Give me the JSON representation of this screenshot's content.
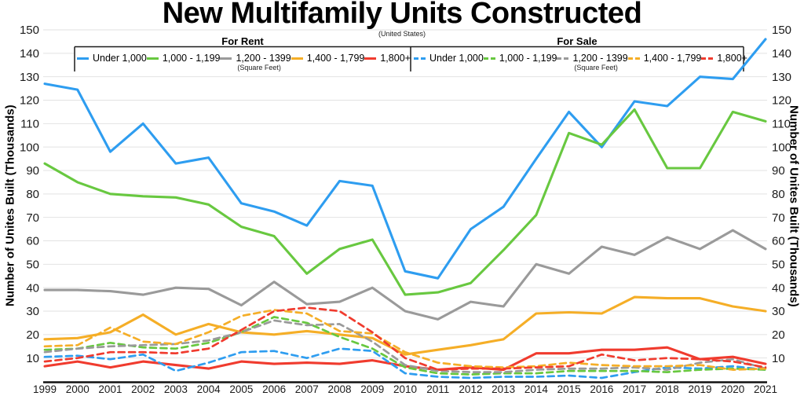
{
  "title": "New Multifamily Units Constructed",
  "subtitle": "(United States)",
  "y_axis_title_left": "Number of Unites Built (Thousands)",
  "y_axis_title_right": "Number of Unites Built (Thousands)",
  "legend": {
    "groups": [
      {
        "title": "For Rent",
        "note": "(Square Feet)",
        "series_indexes": [
          0,
          1,
          2,
          3,
          4
        ]
      },
      {
        "title": "For Sale",
        "note": "(Square Feet)",
        "series_indexes": [
          5,
          6,
          7,
          8,
          9
        ]
      }
    ]
  },
  "chart_data": {
    "type": "line",
    "title": "New Multifamily Units Constructed",
    "subtitle": "(United States)",
    "ylabel": "Number of Unites Built (Thousands)",
    "ylim": [
      0,
      150
    ],
    "y_ticks": [
      10,
      20,
      30,
      40,
      50,
      60,
      70,
      80,
      90,
      100,
      110,
      120,
      130,
      140,
      150
    ],
    "grid": true,
    "legend_position": "top",
    "x": [
      1999,
      2000,
      2001,
      2002,
      2003,
      2004,
      2005,
      2006,
      2007,
      2008,
      2009,
      2010,
      2011,
      2012,
      2013,
      2014,
      2015,
      2016,
      2017,
      2018,
      2019,
      2020,
      2021
    ],
    "series": [
      {
        "name": "For Rent Under 1,000",
        "label": "Under 1,000",
        "color": "#2E9DF0",
        "dash": "solid",
        "values": [
          127,
          124.5,
          98,
          110,
          93,
          95.5,
          76,
          72.5,
          66.5,
          85.5,
          83.5,
          47,
          44,
          65,
          74.5,
          95,
          115,
          100,
          119.5,
          117.5,
          130,
          129,
          146
        ]
      },
      {
        "name": "For Rent 1,000 - 1,199",
        "label": "1,000 - 1,199",
        "color": "#68C840",
        "dash": "solid",
        "values": [
          93,
          85,
          80,
          79,
          78.5,
          75.5,
          66,
          62,
          46,
          56.5,
          60.5,
          37,
          38,
          42,
          56,
          71,
          106,
          101,
          116,
          91,
          91,
          115,
          111
        ]
      },
      {
        "name": "For Rent 1,200 - 1399",
        "label": "1,200 - 1399",
        "color": "#9A9A9A",
        "dash": "solid",
        "values": [
          39,
          39,
          38.5,
          37,
          40,
          39.5,
          32.5,
          42.5,
          33,
          34,
          40,
          30,
          26.5,
          34,
          32,
          50,
          46,
          57.5,
          54,
          61.5,
          56.5,
          64.5,
          56.5
        ]
      },
      {
        "name": "For Rent 1,400 - 1,799",
        "label": "1,400 - 1,799",
        "color": "#F5AE27",
        "dash": "solid",
        "values": [
          18,
          18.5,
          21,
          28.5,
          20,
          24.5,
          21,
          20,
          21.5,
          20,
          18.5,
          11.5,
          13.5,
          15.5,
          18,
          29,
          29.5,
          29,
          36,
          35.5,
          35.5,
          32,
          30
        ]
      },
      {
        "name": "For Rent 1,800+",
        "label": "1,800+",
        "color": "#F03B2E",
        "dash": "solid",
        "values": [
          6.5,
          8.5,
          6,
          8.5,
          7,
          5.5,
          8.5,
          7.5,
          8,
          7.5,
          9,
          6.5,
          5,
          6,
          5,
          12,
          12,
          13.5,
          13.5,
          14.5,
          9.5,
          10.5,
          7.5
        ]
      },
      {
        "name": "For Sale Under 1,000",
        "label": "Under 1,000",
        "color": "#2E9DF0",
        "dash": "dashed",
        "values": [
          10.5,
          11,
          9.5,
          11.5,
          4.5,
          8,
          12.5,
          13,
          10,
          14,
          13,
          3.5,
          2,
          1.5,
          2,
          2,
          2.5,
          1.5,
          4,
          6,
          5.5,
          6.5,
          5
        ]
      },
      {
        "name": "For Sale 1,000 - 1,199",
        "label": "1,000 - 1,199",
        "color": "#68C840",
        "dash": "dashed",
        "values": [
          13.5,
          14,
          16.5,
          14.5,
          14,
          16.5,
          21,
          27.5,
          25,
          19,
          14,
          6,
          3.5,
          3,
          3.5,
          3.5,
          4.5,
          4.5,
          4.5,
          4,
          5,
          5.5,
          5
        ]
      },
      {
        "name": "For Sale 1,200 - 1399",
        "label": "1,200 - 1399",
        "color": "#9A9A9A",
        "dash": "dashed",
        "values": [
          12.5,
          14,
          15,
          15.5,
          16,
          17.5,
          21,
          26,
          24,
          24.5,
          17,
          7,
          4.5,
          4,
          4,
          5,
          5.5,
          5.5,
          6,
          5,
          8,
          9.5,
          5.5
        ]
      },
      {
        "name": "For Sale 1,400 - 1,799",
        "label": "1,400 - 1,799",
        "color": "#F5AE27",
        "dash": "dashed",
        "values": [
          15,
          15.5,
          23,
          17,
          16,
          21,
          28,
          30.5,
          29,
          21.5,
          20.5,
          12.5,
          8,
          6.5,
          6,
          6.5,
          8,
          7,
          6.5,
          6.5,
          7,
          5,
          5.5
        ]
      },
      {
        "name": "For Sale 1,800+",
        "label": "1,800+",
        "color": "#F03B2E",
        "dash": "dashed",
        "values": [
          8.5,
          10,
          12.5,
          12.5,
          12,
          14,
          22,
          30,
          31.5,
          30,
          21,
          10,
          5,
          5.5,
          5.5,
          6,
          6.5,
          11.5,
          9,
          10,
          9.5,
          8.5,
          6
        ]
      }
    ]
  }
}
